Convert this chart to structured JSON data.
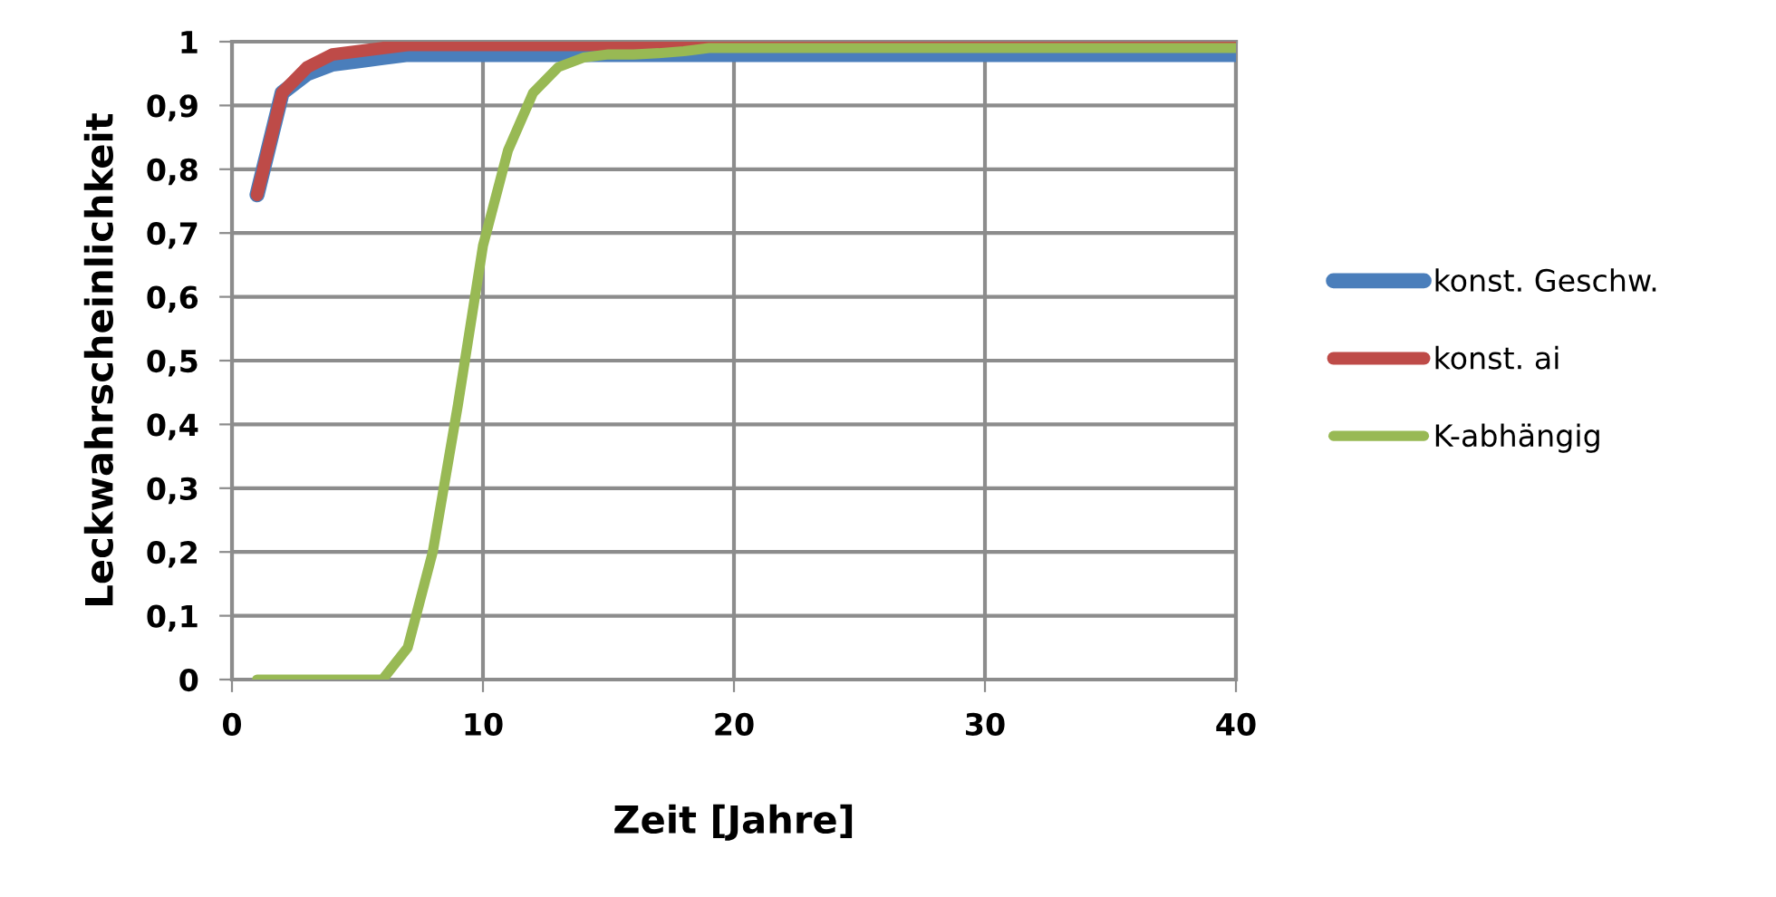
{
  "chart_data": {
    "type": "line",
    "xlabel": "Zeit [Jahre]",
    "ylabel": "Leckwahrscheinlichkeit",
    "xlim": [
      0,
      40
    ],
    "xticks": [
      0,
      10,
      20,
      30,
      40
    ],
    "ylim": [
      0,
      1
    ],
    "yticks": [
      {
        "value": 0,
        "label": "0"
      },
      {
        "value": 0.1,
        "label": "0,1"
      },
      {
        "value": 0.2,
        "label": "0,2"
      },
      {
        "value": 0.3,
        "label": "0,3"
      },
      {
        "value": 0.4,
        "label": "0,4"
      },
      {
        "value": 0.5,
        "label": "0,5"
      },
      {
        "value": 0.6,
        "label": "0,6"
      },
      {
        "value": 0.7,
        "label": "0,7"
      },
      {
        "value": 0.8,
        "label": "0,8"
      },
      {
        "value": 0.9,
        "label": "0,9"
      },
      {
        "value": 1,
        "label": "1"
      }
    ],
    "grid": true,
    "legend": "right",
    "marker": "none",
    "line_style": "solid",
    "series": [
      {
        "name": "konst. Geschw.",
        "color": "#4a7ebb",
        "x": [
          1,
          2,
          3,
          4,
          5,
          6,
          7,
          10,
          20,
          30,
          40
        ],
        "values": [
          0.76,
          0.92,
          0.95,
          0.965,
          0.97,
          0.975,
          0.98,
          0.98,
          0.98,
          0.98,
          0.98
        ]
      },
      {
        "name": "konst. ai",
        "color": "#be4b48",
        "x": [
          1,
          2,
          3,
          4,
          5,
          6,
          7,
          10,
          20,
          30,
          40
        ],
        "values": [
          0.76,
          0.92,
          0.96,
          0.98,
          0.985,
          0.99,
          0.995,
          0.995,
          0.995,
          0.995,
          0.995
        ]
      },
      {
        "name": "K-abhängig",
        "color": "#98b954",
        "x": [
          1,
          2,
          3,
          4,
          5,
          6,
          7,
          8,
          9,
          10,
          11,
          12,
          13,
          14,
          15,
          16,
          17,
          18,
          19,
          20,
          30,
          40
        ],
        "values": [
          0,
          0,
          0,
          0,
          0,
          0,
          0.05,
          0.2,
          0.43,
          0.68,
          0.83,
          0.92,
          0.96,
          0.975,
          0.98,
          0.98,
          0.982,
          0.985,
          0.99,
          0.99,
          0.99,
          0.99
        ]
      }
    ]
  }
}
